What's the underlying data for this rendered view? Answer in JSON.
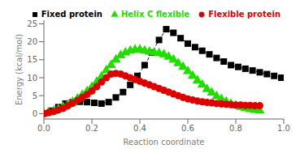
{
  "chart_data": {
    "type": "scatter",
    "xlabel": "Reaction coordinate",
    "ylabel": "Energy (kcal/mol)",
    "xlim": [
      0.0,
      1.0
    ],
    "ylim": [
      -1.5,
      26
    ],
    "xticks": [
      {
        "value": 0.0,
        "label": "0.0"
      },
      0.2,
      0.4,
      0.6,
      0.8,
      {
        "value": 1.0,
        "label": "1.0"
      }
    ],
    "yticks": [
      0,
      5,
      10,
      15,
      20,
      25
    ],
    "grid": false,
    "legend": "upper right",
    "series": [
      {
        "name": "Fixed protein",
        "color": "#000000",
        "marker": "square",
        "line_style": "dashed",
        "x": [
          0.0,
          0.03,
          0.06,
          0.09,
          0.12,
          0.15,
          0.18,
          0.21,
          0.24,
          0.27,
          0.3,
          0.33,
          0.36,
          0.39,
          0.42,
          0.45,
          0.48,
          0.51,
          0.54,
          0.57,
          0.6,
          0.63,
          0.66,
          0.69,
          0.72,
          0.75,
          0.78,
          0.81,
          0.84,
          0.87,
          0.9,
          0.93,
          0.96,
          0.99
        ],
        "values": [
          0.0,
          0.8,
          1.8,
          2.8,
          3.2,
          3.3,
          3.2,
          3.0,
          2.8,
          3.2,
          4.5,
          6.0,
          8.0,
          10.5,
          13.5,
          17.0,
          20.5,
          23.5,
          22.5,
          21.0,
          19.5,
          18.5,
          17.5,
          16.5,
          15.5,
          14.5,
          13.5,
          13.0,
          12.5,
          12.0,
          11.5,
          11.0,
          10.5,
          10.0
        ]
      },
      {
        "name": "Helix C flexible",
        "color": "#22dd00",
        "marker": "triangle",
        "line_style": "none",
        "x": [
          0.0,
          0.02,
          0.04,
          0.06,
          0.08,
          0.1,
          0.12,
          0.14,
          0.16,
          0.18,
          0.2,
          0.22,
          0.24,
          0.26,
          0.28,
          0.3,
          0.32,
          0.34,
          0.36,
          0.38,
          0.4,
          0.42,
          0.44,
          0.46,
          0.48,
          0.5,
          0.52,
          0.54,
          0.56,
          0.58,
          0.6,
          0.62,
          0.64,
          0.66,
          0.68,
          0.7,
          0.72,
          0.74,
          0.76,
          0.78,
          0.8,
          0.82,
          0.84,
          0.86,
          0.88,
          0.9
        ],
        "values": [
          0.0,
          0.3,
          0.7,
          1.2,
          1.8,
          2.5,
          3.3,
          4.2,
          5.2,
          6.2,
          7.4,
          8.8,
          10.3,
          12.0,
          13.5,
          15.0,
          16.2,
          17.0,
          17.5,
          17.8,
          17.8,
          17.5,
          17.2,
          17.0,
          16.8,
          16.5,
          15.8,
          15.0,
          14.0,
          13.0,
          11.8,
          10.5,
          9.2,
          8.0,
          6.8,
          5.8,
          4.8,
          4.0,
          3.3,
          2.7,
          2.2,
          1.8,
          1.5,
          1.2,
          1.0,
          0.8
        ]
      },
      {
        "name": "Flexible protein",
        "color": "#dd0000",
        "marker": "circle",
        "line_style": "none",
        "x": [
          0.0,
          0.02,
          0.04,
          0.06,
          0.08,
          0.1,
          0.12,
          0.14,
          0.16,
          0.18,
          0.2,
          0.22,
          0.24,
          0.26,
          0.28,
          0.3,
          0.32,
          0.34,
          0.36,
          0.38,
          0.4,
          0.42,
          0.44,
          0.46,
          0.48,
          0.5,
          0.52,
          0.54,
          0.56,
          0.58,
          0.6,
          0.62,
          0.64,
          0.66,
          0.68,
          0.7,
          0.72,
          0.74,
          0.76,
          0.78,
          0.8,
          0.82,
          0.84,
          0.86,
          0.88,
          0.9
        ],
        "values": [
          0.0,
          0.3,
          0.6,
          1.0,
          1.5,
          2.2,
          2.9,
          3.7,
          4.5,
          5.3,
          6.3,
          7.5,
          8.8,
          10.0,
          11.0,
          11.2,
          11.0,
          10.5,
          10.0,
          9.5,
          9.0,
          8.5,
          8.0,
          7.5,
          7.0,
          6.5,
          6.0,
          5.5,
          5.0,
          4.5,
          4.1,
          3.8,
          3.5,
          3.3,
          3.1,
          3.0,
          2.8,
          2.7,
          2.6,
          2.5,
          2.4,
          2.4,
          2.3,
          2.3,
          2.2,
          2.2
        ]
      }
    ]
  }
}
